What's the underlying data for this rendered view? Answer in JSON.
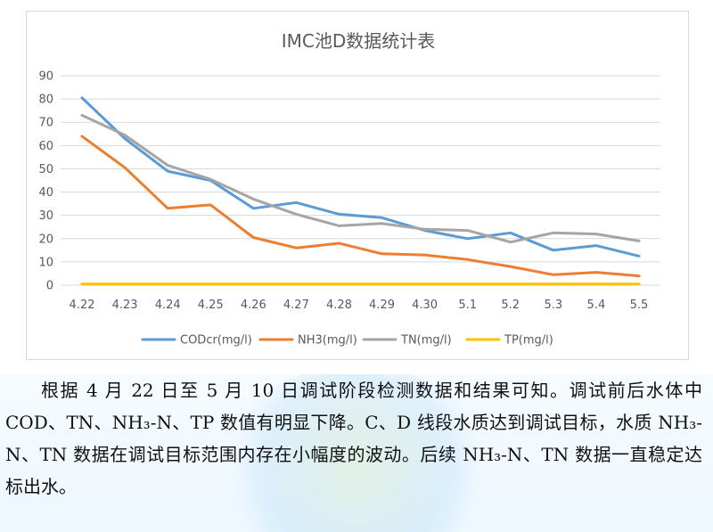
{
  "chart_data": {
    "type": "line",
    "title": "IMC池D数据统计表",
    "categories": [
      "4.22",
      "4.23",
      "4.24",
      "4.25",
      "4.26",
      "4.27",
      "4.28",
      "4.29",
      "4.30",
      "5.1",
      "5.2",
      "5.3",
      "5.4",
      "5.5"
    ],
    "ylim": [
      0,
      90
    ],
    "yticks": [
      "0",
      "10",
      "20",
      "30",
      "40",
      "50",
      "60",
      "70",
      "80",
      "90"
    ],
    "grid": true,
    "legend_position": "bottom",
    "series": [
      {
        "name": "CODcr(mg/l)",
        "color": "#5b9bd5",
        "values": [
          80.5,
          63,
          49,
          45,
          33,
          35.5,
          30.5,
          29,
          23.5,
          20,
          22.5,
          15,
          17,
          12.5
        ]
      },
      {
        "name": "NH3(mg/l)",
        "color": "#ed7d31",
        "values": [
          64,
          50.5,
          33,
          34.5,
          20.5,
          16,
          18,
          13.5,
          13,
          11,
          8,
          4.5,
          5.5,
          4
        ]
      },
      {
        "name": "TN(mg/l)",
        "color": "#a5a5a5",
        "values": [
          73,
          64.5,
          51.5,
          45.5,
          37,
          30.5,
          25.5,
          26.5,
          24,
          23.5,
          18.5,
          22.5,
          22,
          19
        ]
      },
      {
        "name": "TP(mg/l)",
        "color": "#ffc000",
        "values": [
          0.5,
          0.5,
          0.5,
          0.5,
          0.5,
          0.5,
          0.5,
          0.5,
          0.5,
          0.5,
          0.5,
          0.5,
          0.5,
          0.5
        ]
      }
    ]
  },
  "paragraph": {
    "text": "根据 4 月 22 日至 5 月 10 日调试阶段检测数据和结果可知。调试前后水体中 COD、TN、NH₃-N、TP 数值有明显下降。C、D 线段水质达到调试目标，水质 NH₃-N、TN 数据在调试目标范围内存在小幅度的波动。后续 NH₃-N、TN 数据一直稳定达标出水。"
  }
}
